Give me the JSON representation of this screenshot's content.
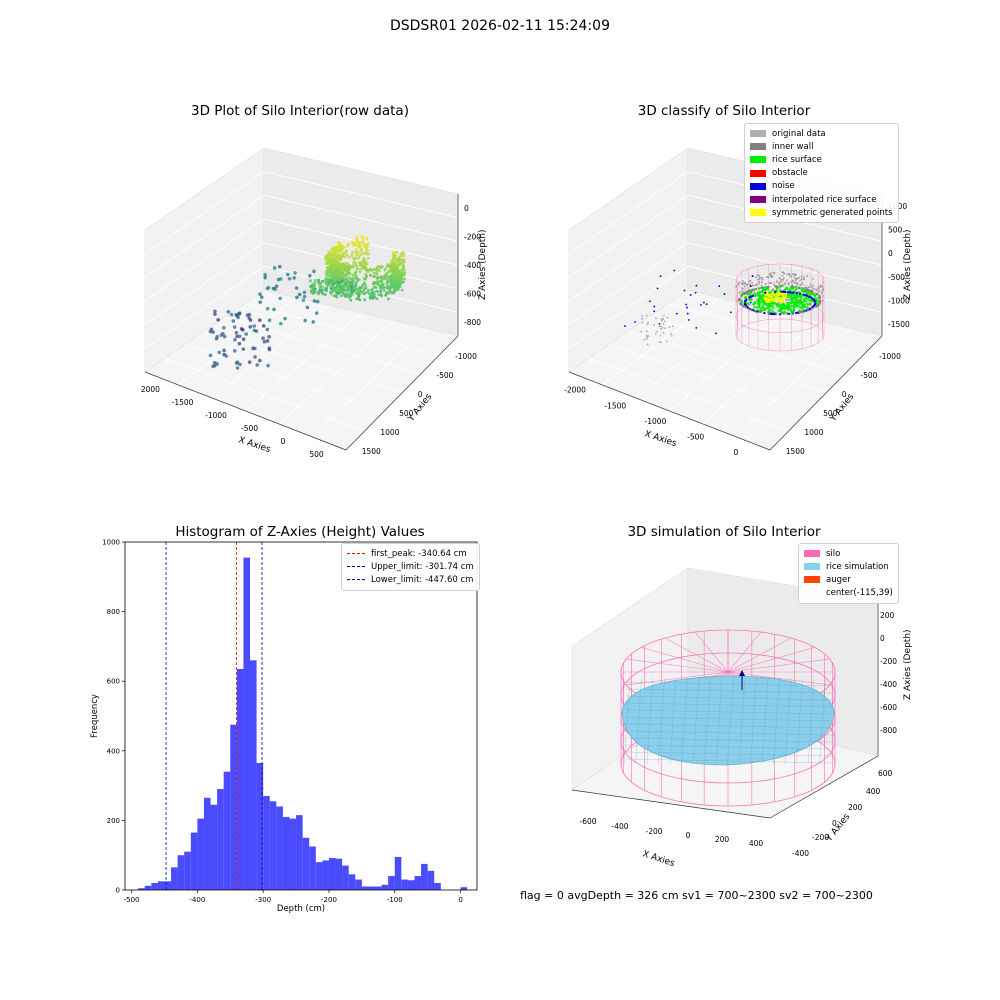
{
  "figure": {
    "suptitle": "DSDSR01 2026-02-11 15:24:09",
    "footer": "flag = 0     avgDepth = 326 cm  sv1 = 700~2300  sv2 = 700~2300"
  },
  "panels": {
    "raw": {
      "title": "3D Plot of Silo Interior(row data)",
      "xlabel": "X Axies",
      "ylabel": "Y Axies",
      "zlabel": "Z Axies (Depth)",
      "xticks": [
        "-2000",
        "-1500",
        "-1000",
        "-500",
        "0",
        "500"
      ],
      "yticks": [
        "1500",
        "1000",
        "500",
        "0",
        "-500",
        "-1000"
      ],
      "zticks": [
        "0",
        "-200",
        "-400",
        "-600",
        "-800"
      ]
    },
    "classify": {
      "title": "3D classify of Silo Interior",
      "xlabel": "X Axies",
      "ylabel": "Y Axies",
      "zlabel": "Z Axies (Depth)",
      "xticks": [
        "-2000",
        "-1500",
        "-1000",
        "-500",
        "0"
      ],
      "yticks": [
        "1500",
        "1000",
        "500",
        "0",
        "-500",
        "-1000"
      ],
      "zticks": [
        "1000",
        "500",
        "0",
        "-500",
        "-1000",
        "-1500"
      ],
      "legend": [
        {
          "label": "original data",
          "color": "#b0b0b0"
        },
        {
          "label": "inner wall",
          "color": "#808080"
        },
        {
          "label": "rice surface",
          "color": "#00ee00"
        },
        {
          "label": "obstacle",
          "color": "#ff0000"
        },
        {
          "label": "noise",
          "color": "#0000dd"
        },
        {
          "label": "interpolated rice surface",
          "color": "#800080"
        },
        {
          "label": "symmetric generated points",
          "color": "#ffff00"
        }
      ]
    },
    "simulation": {
      "title": "3D simulation of Silo Interior",
      "xlabel": "X Axies",
      "ylabel": "Y Axies",
      "zlabel": "Z Axies (Depth)",
      "xticks": [
        "-600",
        "-400",
        "-200",
        "0",
        "200",
        "400"
      ],
      "yticks": [
        "600",
        "400",
        "200",
        "0",
        "-200",
        "-400"
      ],
      "zticks": [
        "200",
        "0",
        "-200",
        "-400",
        "-600",
        "-800"
      ],
      "legend": [
        {
          "label": "silo",
          "color": "#ff69b4"
        },
        {
          "label": "rice simulation",
          "color": "#87ceeb"
        },
        {
          "label": "auger",
          "color": "#ff4500"
        },
        {
          "label": "center(-115,39)",
          "color": ""
        }
      ]
    }
  },
  "chart_data": [
    {
      "type": "bar",
      "title": "Histogram of Z-Axies (Height) Values",
      "xlabel": "Depth (cm)",
      "ylabel": "Frequency",
      "xlim": [
        -510,
        25
      ],
      "ylim": [
        0,
        1000
      ],
      "xticks": [
        -500,
        -400,
        -300,
        -200,
        -100,
        0
      ],
      "yticks": [
        0,
        200,
        400,
        600,
        800,
        1000
      ],
      "bin_width": 10,
      "bin_starts": [
        -490,
        -480,
        -470,
        -460,
        -450,
        -440,
        -430,
        -420,
        -410,
        -400,
        -390,
        -380,
        -370,
        -360,
        -350,
        -340,
        -330,
        -320,
        -310,
        -300,
        -290,
        -280,
        -270,
        -260,
        -250,
        -240,
        -230,
        -220,
        -210,
        -200,
        -190,
        -180,
        -170,
        -160,
        -150,
        -140,
        -130,
        -120,
        -110,
        -100,
        -90,
        -80,
        -70,
        -60,
        -50,
        -40,
        -30,
        -20,
        -10,
        0
      ],
      "values": [
        5,
        12,
        20,
        25,
        25,
        65,
        100,
        110,
        165,
        205,
        265,
        245,
        290,
        340,
        475,
        635,
        955,
        660,
        365,
        270,
        255,
        240,
        210,
        205,
        215,
        150,
        125,
        80,
        85,
        92,
        90,
        70,
        45,
        30,
        10,
        10,
        10,
        15,
        40,
        95,
        30,
        28,
        40,
        75,
        55,
        20,
        0,
        0,
        0,
        8
      ],
      "lines": [
        {
          "label": "first_peak: -340.64 cm",
          "value": -340.64,
          "color": "#ff0000"
        },
        {
          "label": "Upper_limit: -301.74 cm",
          "value": -301.74,
          "color": "#00008b"
        },
        {
          "label": "Lower_limit: -447.60 cm",
          "value": -447.6,
          "color": "#0000cd"
        }
      ],
      "bar_color": "#4040ff",
      "legend_position": "upper right"
    }
  ]
}
